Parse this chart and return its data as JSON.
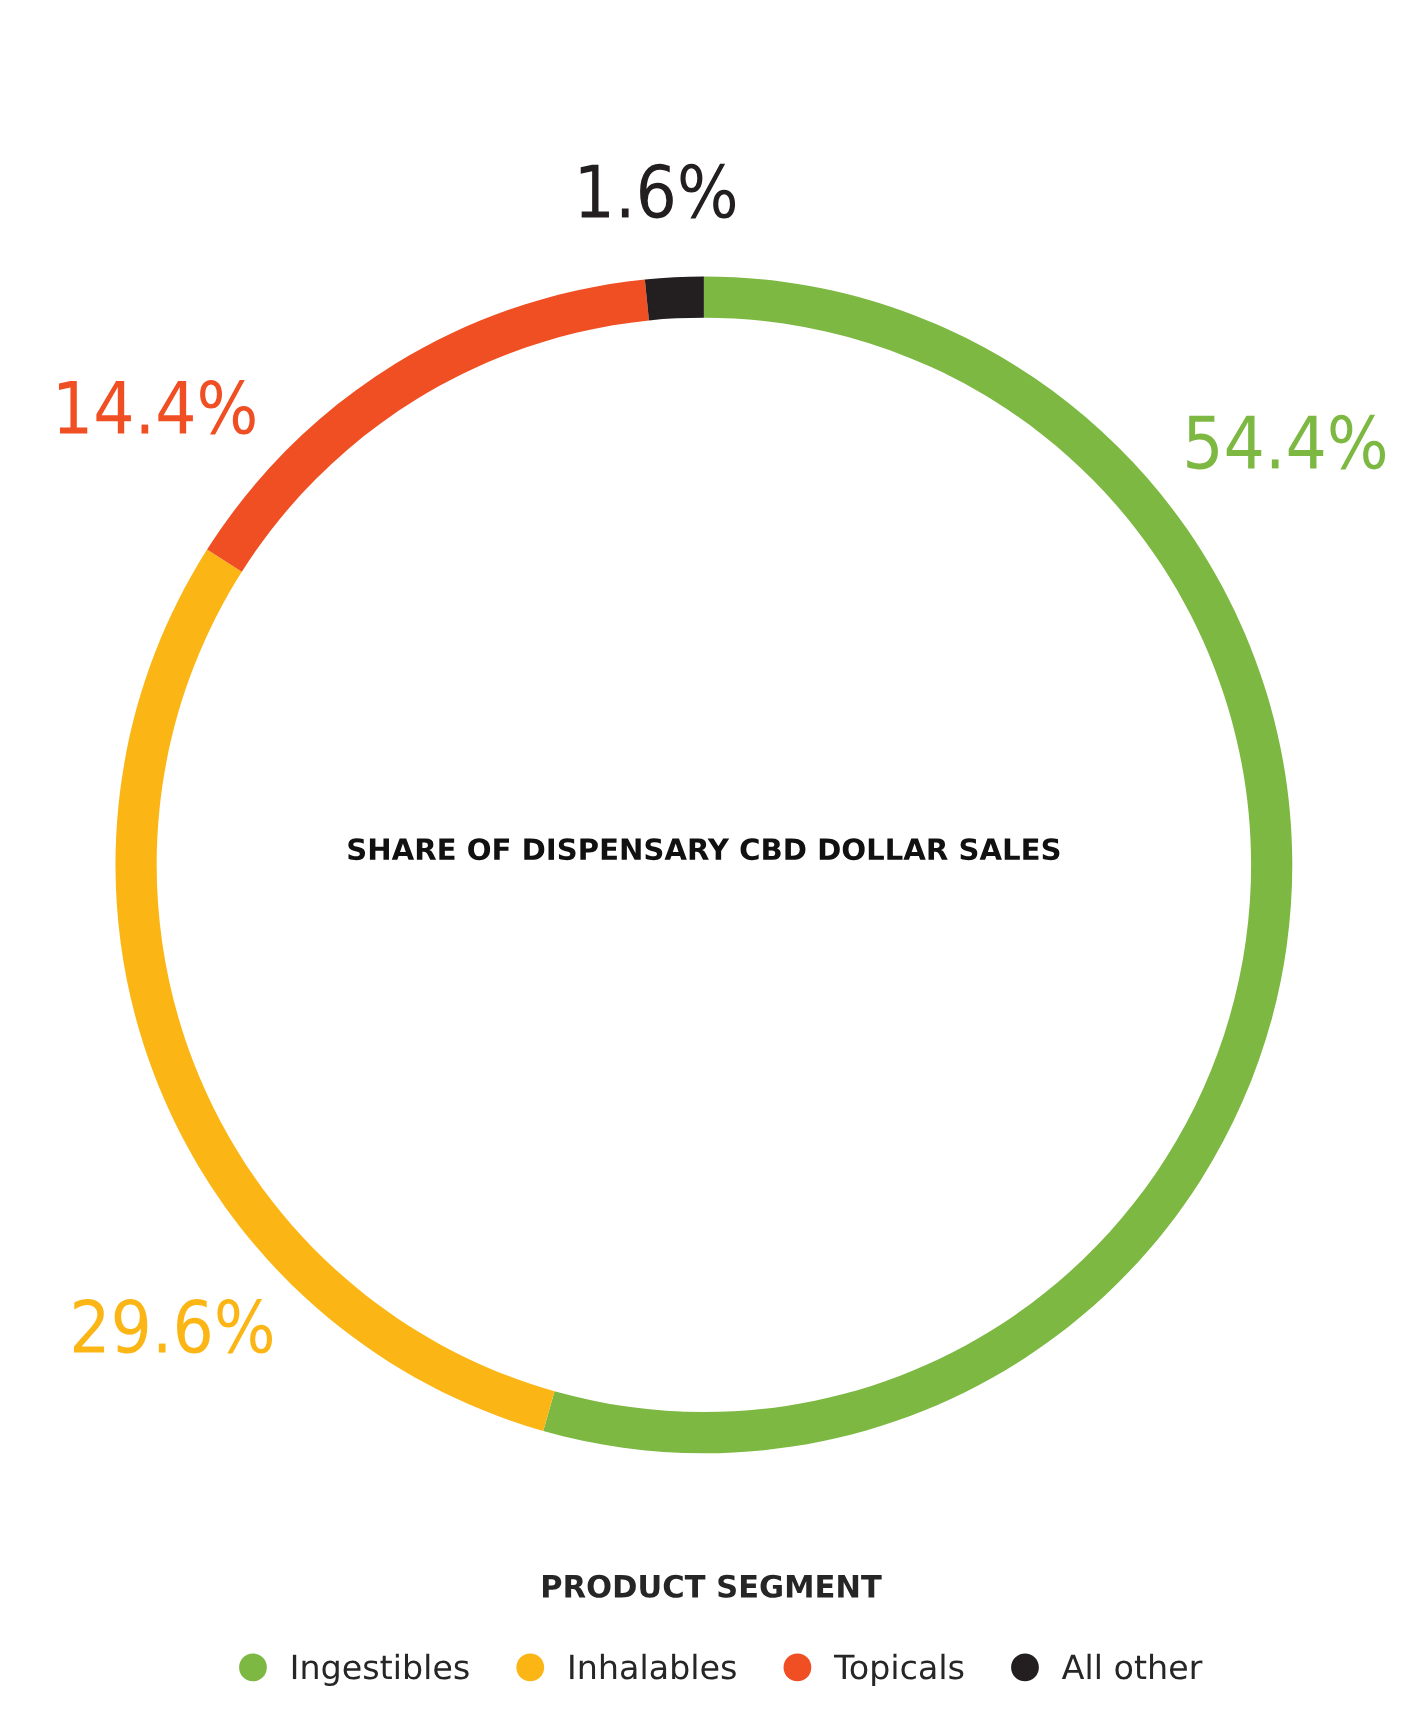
{
  "chart_data": {
    "type": "donut",
    "title": "SHARE OF DISPENSARY CBD DOLLAR SALES",
    "legend_title": "PRODUCT SEGMENT",
    "categories": [
      "Ingestibles",
      "Inhalables",
      "Topicals",
      "All other"
    ],
    "values": [
      54.4,
      29.6,
      14.4,
      1.6
    ],
    "colors": [
      "#7db843",
      "#fbb616",
      "#f04e23",
      "#231f20"
    ],
    "value_labels": [
      "54.4%",
      "29.6%",
      "14.4%",
      "1.6%"
    ],
    "legend": "bottom",
    "marker": "circle"
  }
}
